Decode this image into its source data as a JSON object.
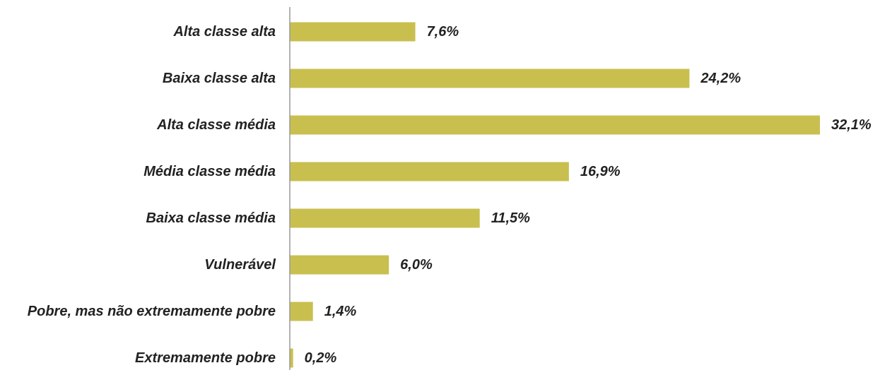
{
  "chart_data": {
    "type": "bar",
    "orientation": "horizontal",
    "categories": [
      "Alta classe alta",
      "Baixa classe alta",
      "Alta classe média",
      "Média classe média",
      "Baixa classe média",
      "Vulnerável",
      "Pobre, mas não extremamente pobre",
      "Extremamente pobre"
    ],
    "values": [
      7.6,
      24.2,
      32.1,
      16.9,
      11.5,
      6.0,
      1.4,
      0.2
    ],
    "value_labels": [
      "7,6%",
      "24,2%",
      "32,1%",
      "16,9%",
      "11,5%",
      "6,0%",
      "1,4%",
      "0,2%"
    ],
    "unit": "%",
    "title": "",
    "xlabel": "",
    "ylabel": "",
    "xlim": [
      0,
      33
    ],
    "grid": false,
    "legend": "none",
    "bar_color": "#C9BF4F",
    "axis_color": "#999999",
    "text_color": "#222222"
  }
}
